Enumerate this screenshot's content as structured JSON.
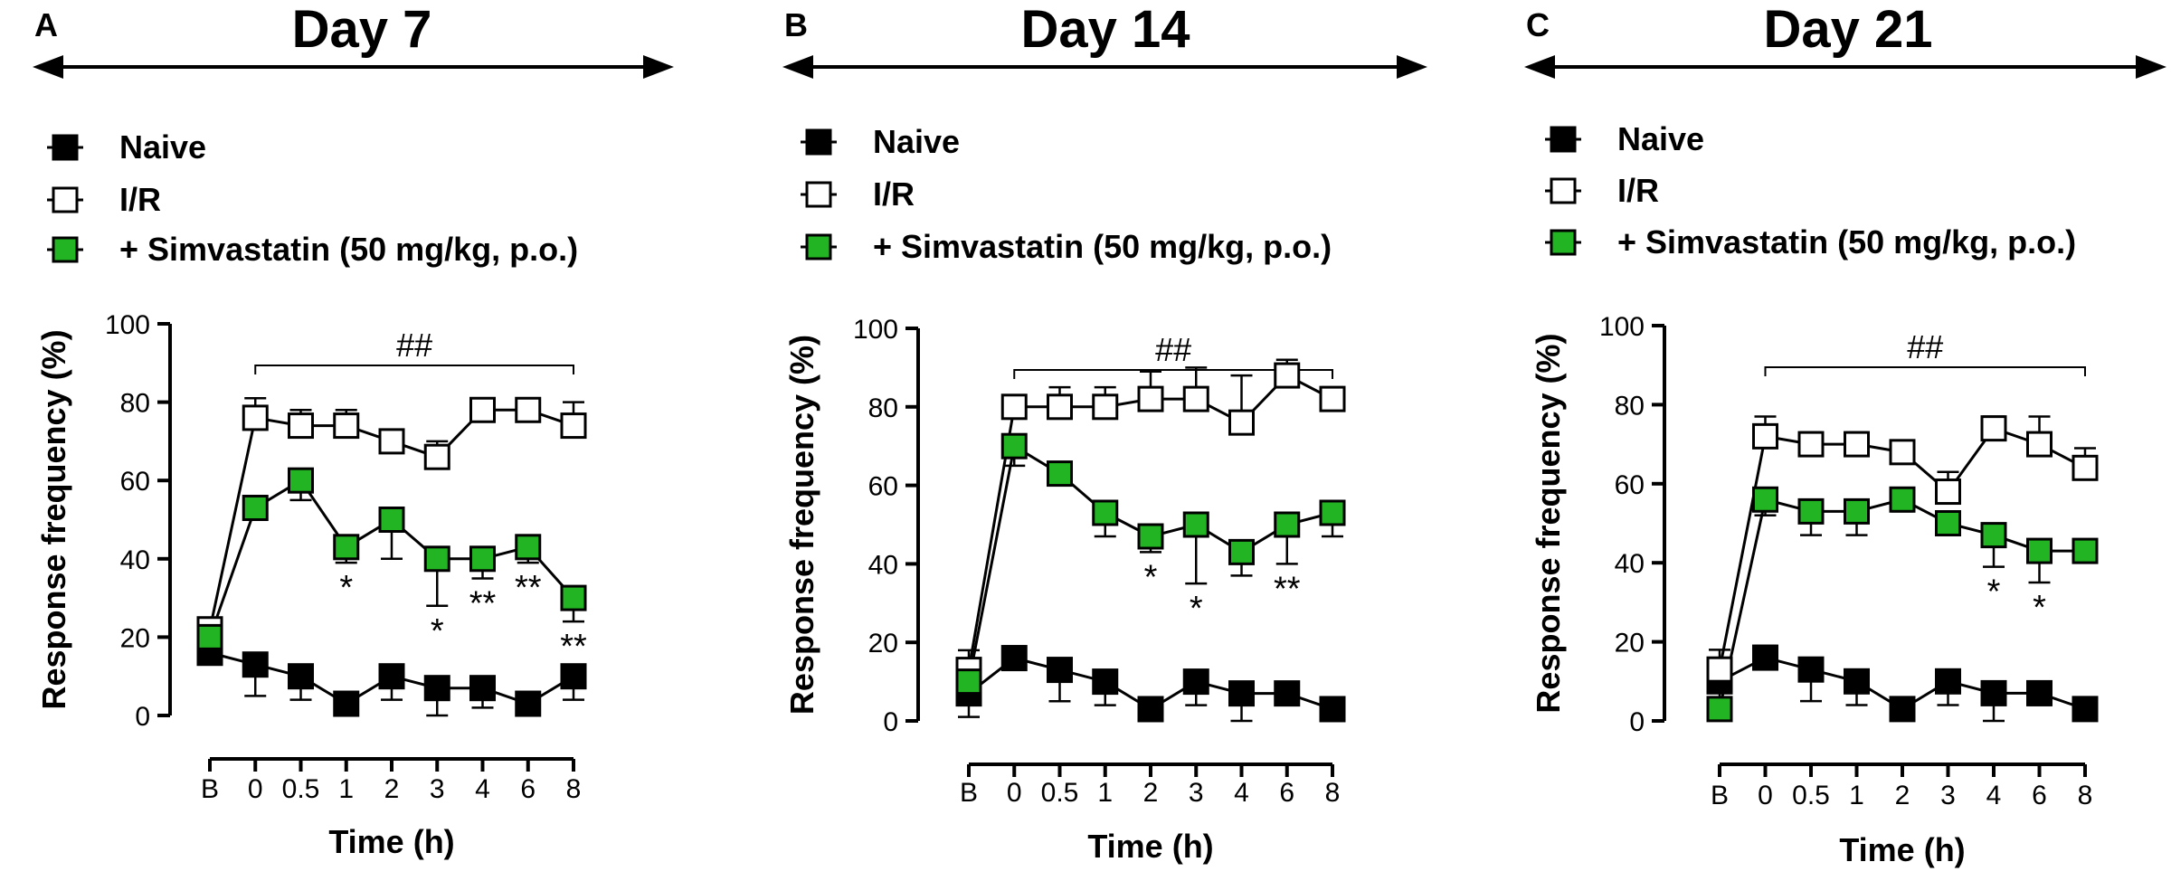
{
  "colors": {
    "naive_fill": "#000000",
    "ir_fill": "#ffffff",
    "simva_fill": "#22b422",
    "stroke": "#000000"
  },
  "legend": [
    {
      "key": "naive",
      "label": "Naive"
    },
    {
      "key": "ir",
      "label": "I/R"
    },
    {
      "key": "simva",
      "label": "+ Simvastatin (50 mg/kg, p.o.)"
    }
  ],
  "chart_data": [
    {
      "type": "line",
      "panel": "A",
      "title": "Day 7",
      "xlabel": "Time (h)",
      "ylabel": "Response frequency (%)",
      "ylim": [
        0,
        100
      ],
      "yticks": [
        0,
        20,
        40,
        60,
        80,
        100
      ],
      "categories": [
        "B",
        "0",
        "0.5",
        "1",
        "2",
        "3",
        "4",
        "6",
        "8"
      ],
      "significance_bracket": {
        "label": "##",
        "from": "0",
        "to": "8"
      },
      "series": [
        {
          "name": "Naive",
          "key": "naive",
          "values": [
            16,
            13,
            10,
            3,
            10,
            7,
            7,
            3,
            10
          ],
          "errors": [
            3,
            8,
            6,
            2,
            6,
            7,
            5,
            2,
            6
          ],
          "error_dir": [
            1,
            -1,
            -1,
            -1,
            -1,
            -1,
            -1,
            -1,
            -1
          ]
        },
        {
          "name": "I/R",
          "key": "ir",
          "values": [
            22,
            76,
            74,
            74,
            70,
            66,
            78,
            78,
            74
          ],
          "errors": [
            3,
            5,
            4,
            4,
            3,
            4,
            3,
            2,
            6
          ],
          "error_dir": [
            1,
            1,
            1,
            1,
            1,
            1,
            1,
            1,
            1
          ]
        },
        {
          "name": "+ Simvastatin (50 mg/kg, p.o.)",
          "key": "simva",
          "values": [
            20,
            53,
            60,
            43,
            50,
            40,
            40,
            43,
            30
          ],
          "errors": [
            3,
            3,
            5,
            4,
            10,
            12,
            5,
            4,
            6
          ],
          "error_dir": [
            1,
            -1,
            -1,
            -1,
            -1,
            -1,
            -1,
            -1,
            -1
          ]
        }
      ],
      "annotations": [
        {
          "category": "1",
          "label": "*"
        },
        {
          "category": "3",
          "label": "*"
        },
        {
          "category": "4",
          "label": "**"
        },
        {
          "category": "6",
          "label": "**"
        },
        {
          "category": "8",
          "label": "**"
        }
      ]
    },
    {
      "type": "line",
      "panel": "B",
      "title": "Day 14",
      "xlabel": "Time (h)",
      "ylabel": "Response frequency (%)",
      "ylim": [
        0,
        100
      ],
      "yticks": [
        0,
        20,
        40,
        60,
        80,
        100
      ],
      "categories": [
        "B",
        "0",
        "0.5",
        "1",
        "2",
        "3",
        "4",
        "6",
        "8"
      ],
      "significance_bracket": {
        "label": "##",
        "from": "0",
        "to": "8"
      },
      "series": [
        {
          "name": "Naive",
          "key": "naive",
          "values": [
            7,
            16,
            13,
            10,
            3,
            10,
            7,
            7,
            3
          ],
          "errors": [
            6,
            3,
            8,
            6,
            2,
            6,
            7,
            3,
            2
          ],
          "error_dir": [
            -1,
            1,
            -1,
            -1,
            -1,
            -1,
            -1,
            -1,
            -1
          ]
        },
        {
          "name": "I/R",
          "key": "ir",
          "values": [
            13,
            80,
            80,
            80,
            82,
            82,
            76,
            88,
            82
          ],
          "errors": [
            5,
            3,
            5,
            5,
            7,
            8,
            12,
            4,
            3
          ],
          "error_dir": [
            1,
            1,
            1,
            1,
            1,
            1,
            1,
            1,
            1
          ]
        },
        {
          "name": "+ Simvastatin (50 mg/kg, p.o.)",
          "key": "simva",
          "values": [
            10,
            70,
            63,
            53,
            47,
            50,
            43,
            50,
            53
          ],
          "errors": [
            3,
            5,
            3,
            6,
            4,
            15,
            6,
            10,
            6
          ],
          "error_dir": [
            1,
            -1,
            -1,
            -1,
            -1,
            -1,
            -1,
            -1,
            -1
          ]
        }
      ],
      "annotations": [
        {
          "category": "2",
          "label": "*"
        },
        {
          "category": "3",
          "label": "*"
        },
        {
          "category": "6",
          "label": "**"
        }
      ]
    },
    {
      "type": "line",
      "panel": "C",
      "title": "Day 21",
      "xlabel": "Time (h)",
      "ylabel": "Response frequency (%)",
      "ylim": [
        0,
        100
      ],
      "yticks": [
        0,
        20,
        40,
        60,
        80,
        100
      ],
      "categories": [
        "B",
        "0",
        "0.5",
        "1",
        "2",
        "3",
        "4",
        "6",
        "8"
      ],
      "significance_bracket": {
        "label": "##",
        "from": "0",
        "to": "8"
      },
      "series": [
        {
          "name": "Naive",
          "key": "naive",
          "values": [
            10,
            16,
            13,
            10,
            3,
            10,
            7,
            7,
            3
          ],
          "errors": [
            6,
            3,
            8,
            6,
            2,
            6,
            7,
            3,
            2
          ],
          "error_dir": [
            -1,
            1,
            -1,
            -1,
            -1,
            -1,
            -1,
            -1,
            -1
          ]
        },
        {
          "name": "I/R",
          "key": "ir",
          "values": [
            13,
            72,
            70,
            70,
            68,
            58,
            74,
            70,
            64
          ],
          "errors": [
            5,
            5,
            3,
            3,
            3,
            5,
            3,
            7,
            5
          ],
          "error_dir": [
            1,
            1,
            1,
            1,
            1,
            1,
            1,
            1,
            1
          ]
        },
        {
          "name": "+ Simvastatin (50 mg/kg, p.o.)",
          "key": "simva",
          "values": [
            3,
            56,
            53,
            53,
            56,
            50,
            47,
            43,
            43
          ],
          "errors": [
            3,
            4,
            6,
            6,
            3,
            3,
            8,
            8,
            3
          ],
          "error_dir": [
            1,
            -1,
            -1,
            -1,
            -1,
            -1,
            -1,
            -1,
            -1
          ]
        }
      ],
      "annotations": [
        {
          "category": "4",
          "label": "*"
        },
        {
          "category": "6",
          "label": "*"
        }
      ]
    }
  ]
}
